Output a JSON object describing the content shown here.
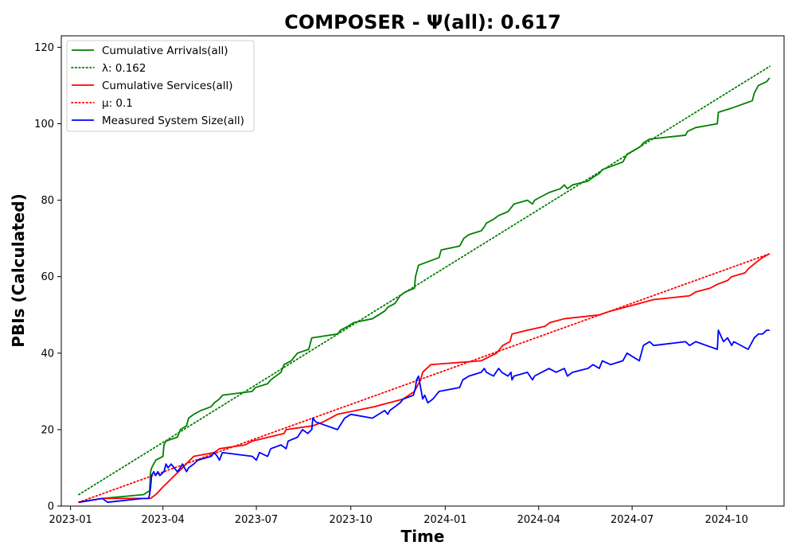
{
  "chart_data": {
    "type": "line",
    "title": "COMPOSER -  Ψ(all): 0.617",
    "xlabel": "Time",
    "ylabel": "PBIs (Calculated)",
    "xlim": [
      "2022-12-23",
      "2024-11-26"
    ],
    "ylim": [
      0,
      123
    ],
    "x_ticks": [
      "2023-01",
      "2023-04",
      "2023-07",
      "2023-10",
      "2024-01",
      "2024-04",
      "2024-07",
      "2024-10"
    ],
    "y_ticks": [
      0,
      20,
      40,
      60,
      80,
      100,
      120
    ],
    "grid": false,
    "legend_position": "top-left",
    "series": [
      {
        "name": "Cumulative Arrivals(all)",
        "style": "solid",
        "color": "#008000",
        "points": [
          [
            "2023-01-09",
            1
          ],
          [
            "2023-02-01",
            2
          ],
          [
            "2023-03-13",
            3
          ],
          [
            "2023-03-19",
            4
          ],
          [
            "2023-03-20",
            9
          ],
          [
            "2023-03-21",
            10
          ],
          [
            "2023-03-25",
            12
          ],
          [
            "2023-04-01",
            13
          ],
          [
            "2023-04-02",
            16
          ],
          [
            "2023-04-04",
            17
          ],
          [
            "2023-04-15",
            18
          ],
          [
            "2023-04-18",
            20
          ],
          [
            "2023-04-24",
            21
          ],
          [
            "2023-04-26",
            23
          ],
          [
            "2023-05-01",
            24
          ],
          [
            "2023-05-08",
            25
          ],
          [
            "2023-05-18",
            26
          ],
          [
            "2023-05-21",
            27
          ],
          [
            "2023-05-26",
            28
          ],
          [
            "2023-05-29",
            29
          ],
          [
            "2023-06-27",
            30
          ],
          [
            "2023-06-30",
            31
          ],
          [
            "2023-07-12",
            32
          ],
          [
            "2023-07-15",
            33
          ],
          [
            "2023-07-25",
            35
          ],
          [
            "2023-07-28",
            37
          ],
          [
            "2023-08-04",
            38
          ],
          [
            "2023-08-10",
            40
          ],
          [
            "2023-08-21",
            41
          ],
          [
            "2023-08-24",
            44
          ],
          [
            "2023-09-18",
            45
          ],
          [
            "2023-09-21",
            46
          ],
          [
            "2023-09-28",
            47
          ],
          [
            "2023-10-04",
            48
          ],
          [
            "2023-10-22",
            49
          ],
          [
            "2023-11-03",
            51
          ],
          [
            "2023-11-06",
            52
          ],
          [
            "2023-11-13",
            53
          ],
          [
            "2023-11-18",
            55
          ],
          [
            "2023-11-23",
            56
          ],
          [
            "2023-12-02",
            57
          ],
          [
            "2023-12-03",
            60
          ],
          [
            "2023-12-06",
            63
          ],
          [
            "2023-12-26",
            65
          ],
          [
            "2023-12-28",
            67
          ],
          [
            "2024-01-15",
            68
          ],
          [
            "2024-01-19",
            70
          ],
          [
            "2024-01-24",
            71
          ],
          [
            "2024-02-05",
            72
          ],
          [
            "2024-02-08",
            73
          ],
          [
            "2024-02-10",
            74
          ],
          [
            "2024-02-17",
            75
          ],
          [
            "2024-02-22",
            76
          ],
          [
            "2024-03-02",
            77
          ],
          [
            "2024-03-05",
            78
          ],
          [
            "2024-03-08",
            79
          ],
          [
            "2024-03-21",
            80
          ],
          [
            "2024-03-26",
            79
          ],
          [
            "2024-03-28",
            80
          ],
          [
            "2024-04-11",
            82
          ],
          [
            "2024-04-22",
            83
          ],
          [
            "2024-04-26",
            84
          ],
          [
            "2024-04-29",
            83
          ],
          [
            "2024-05-04",
            84
          ],
          [
            "2024-05-19",
            85
          ],
          [
            "2024-05-24",
            86
          ],
          [
            "2024-05-30",
            87
          ],
          [
            "2024-06-02",
            88
          ],
          [
            "2024-06-22",
            90
          ],
          [
            "2024-06-26",
            92
          ],
          [
            "2024-07-09",
            94
          ],
          [
            "2024-07-12",
            95
          ],
          [
            "2024-07-18",
            96
          ],
          [
            "2024-08-22",
            97
          ],
          [
            "2024-08-24",
            98
          ],
          [
            "2024-09-01",
            99
          ],
          [
            "2024-09-22",
            100
          ],
          [
            "2024-09-23",
            103
          ],
          [
            "2024-10-05",
            104
          ],
          [
            "2024-10-26",
            106
          ],
          [
            "2024-10-28",
            108
          ],
          [
            "2024-11-01",
            110
          ],
          [
            "2024-11-09",
            111
          ],
          [
            "2024-11-12",
            112
          ]
        ]
      },
      {
        "name": "λ: 0.162",
        "style": "dotted",
        "color": "#008000",
        "points": [
          [
            "2023-01-09",
            3
          ],
          [
            "2024-11-12",
            115
          ]
        ]
      },
      {
        "name": "Cumulative Services(all)",
        "style": "solid",
        "color": "#ff0000",
        "points": [
          [
            "2023-01-09",
            1
          ],
          [
            "2023-02-01",
            2
          ],
          [
            "2023-03-20",
            2
          ],
          [
            "2023-03-25",
            3
          ],
          [
            "2023-04-01",
            5
          ],
          [
            "2023-04-20",
            10
          ],
          [
            "2023-05-01",
            13
          ],
          [
            "2023-05-21",
            14
          ],
          [
            "2023-05-26",
            15
          ],
          [
            "2023-06-20",
            16
          ],
          [
            "2023-06-27",
            17
          ],
          [
            "2023-07-28",
            19
          ],
          [
            "2023-07-30",
            20
          ],
          [
            "2023-08-25",
            21
          ],
          [
            "2023-09-04",
            22
          ],
          [
            "2023-09-18",
            24
          ],
          [
            "2023-10-24",
            26
          ],
          [
            "2023-11-21",
            28
          ],
          [
            "2023-12-02",
            30
          ],
          [
            "2023-12-08",
            33
          ],
          [
            "2023-12-10",
            35
          ],
          [
            "2023-12-18",
            37
          ],
          [
            "2024-02-05",
            38
          ],
          [
            "2024-02-20",
            40
          ],
          [
            "2024-02-26",
            42
          ],
          [
            "2024-03-04",
            43
          ],
          [
            "2024-03-06",
            45
          ],
          [
            "2024-03-21",
            46
          ],
          [
            "2024-04-07",
            47
          ],
          [
            "2024-04-12",
            48
          ],
          [
            "2024-04-26",
            49
          ],
          [
            "2024-05-30",
            50
          ],
          [
            "2024-06-10",
            51
          ],
          [
            "2024-07-08",
            53
          ],
          [
            "2024-07-22",
            54
          ],
          [
            "2024-08-26",
            55
          ],
          [
            "2024-09-01",
            56
          ],
          [
            "2024-09-15",
            57
          ],
          [
            "2024-09-22",
            58
          ],
          [
            "2024-10-02",
            59
          ],
          [
            "2024-10-06",
            60
          ],
          [
            "2024-10-19",
            61
          ],
          [
            "2024-10-22",
            62
          ],
          [
            "2024-10-31",
            64
          ],
          [
            "2024-11-05",
            65
          ],
          [
            "2024-11-12",
            66
          ]
        ]
      },
      {
        "name": "μ: 0.1",
        "style": "dotted",
        "color": "#ff0000",
        "points": [
          [
            "2023-01-09",
            1
          ],
          [
            "2024-11-12",
            66
          ]
        ]
      },
      {
        "name": "Measured System Size(all)",
        "style": "solid",
        "color": "#0000ff",
        "points": [
          [
            "2023-01-09",
            1
          ],
          [
            "2023-02-01",
            2
          ],
          [
            "2023-02-06",
            1
          ],
          [
            "2023-03-13",
            2
          ],
          [
            "2023-03-18",
            2
          ],
          [
            "2023-03-19",
            3
          ],
          [
            "2023-03-20",
            5
          ],
          [
            "2023-03-21",
            8
          ],
          [
            "2023-03-23",
            9
          ],
          [
            "2023-03-25",
            8
          ],
          [
            "2023-03-27",
            9
          ],
          [
            "2023-03-29",
            8
          ],
          [
            "2023-04-02",
            9
          ],
          [
            "2023-04-04",
            11
          ],
          [
            "2023-04-06",
            10
          ],
          [
            "2023-04-09",
            11
          ],
          [
            "2023-04-15",
            9
          ],
          [
            "2023-04-18",
            10
          ],
          [
            "2023-04-20",
            11
          ],
          [
            "2023-04-24",
            9
          ],
          [
            "2023-04-26",
            10
          ],
          [
            "2023-05-01",
            11
          ],
          [
            "2023-05-05",
            12
          ],
          [
            "2023-05-18",
            13
          ],
          [
            "2023-05-21",
            14
          ],
          [
            "2023-05-24",
            13
          ],
          [
            "2023-05-26",
            12
          ],
          [
            "2023-05-29",
            14
          ],
          [
            "2023-06-27",
            13
          ],
          [
            "2023-07-01",
            12
          ],
          [
            "2023-07-04",
            14
          ],
          [
            "2023-07-12",
            13
          ],
          [
            "2023-07-15",
            15
          ],
          [
            "2023-07-25",
            16
          ],
          [
            "2023-07-30",
            15
          ],
          [
            "2023-08-01",
            17
          ],
          [
            "2023-08-10",
            18
          ],
          [
            "2023-08-15",
            20
          ],
          [
            "2023-08-20",
            19
          ],
          [
            "2023-08-24",
            20
          ],
          [
            "2023-08-25",
            23
          ],
          [
            "2023-08-28",
            22
          ],
          [
            "2023-09-18",
            20
          ],
          [
            "2023-09-25",
            23
          ],
          [
            "2023-10-01",
            24
          ],
          [
            "2023-10-22",
            23
          ],
          [
            "2023-11-03",
            25
          ],
          [
            "2023-11-06",
            24
          ],
          [
            "2023-11-08",
            25
          ],
          [
            "2023-11-13",
            26
          ],
          [
            "2023-11-18",
            27
          ],
          [
            "2023-11-21",
            28
          ],
          [
            "2023-12-01",
            29
          ],
          [
            "2023-12-03",
            31
          ],
          [
            "2023-12-04",
            33
          ],
          [
            "2023-12-06",
            34
          ],
          [
            "2023-12-08",
            31
          ],
          [
            "2023-12-10",
            28
          ],
          [
            "2023-12-12",
            29
          ],
          [
            "2023-12-15",
            27
          ],
          [
            "2023-12-20",
            28
          ],
          [
            "2023-12-26",
            30
          ],
          [
            "2024-01-15",
            31
          ],
          [
            "2024-01-18",
            33
          ],
          [
            "2024-01-24",
            34
          ],
          [
            "2024-02-05",
            35
          ],
          [
            "2024-02-08",
            36
          ],
          [
            "2024-02-10",
            35
          ],
          [
            "2024-02-17",
            34
          ],
          [
            "2024-02-22",
            36
          ],
          [
            "2024-02-25",
            35
          ],
          [
            "2024-03-02",
            34
          ],
          [
            "2024-03-05",
            35
          ],
          [
            "2024-03-06",
            33
          ],
          [
            "2024-03-08",
            34
          ],
          [
            "2024-03-21",
            35
          ],
          [
            "2024-03-26",
            33
          ],
          [
            "2024-03-28",
            34
          ],
          [
            "2024-04-11",
            36
          ],
          [
            "2024-04-18",
            35
          ],
          [
            "2024-04-26",
            36
          ],
          [
            "2024-04-29",
            34
          ],
          [
            "2024-05-04",
            35
          ],
          [
            "2024-05-19",
            36
          ],
          [
            "2024-05-24",
            37
          ],
          [
            "2024-05-30",
            36
          ],
          [
            "2024-06-02",
            38
          ],
          [
            "2024-06-10",
            37
          ],
          [
            "2024-06-22",
            38
          ],
          [
            "2024-06-26",
            40
          ],
          [
            "2024-07-08",
            38
          ],
          [
            "2024-07-12",
            42
          ],
          [
            "2024-07-18",
            43
          ],
          [
            "2024-07-22",
            42
          ],
          [
            "2024-08-22",
            43
          ],
          [
            "2024-08-26",
            42
          ],
          [
            "2024-09-01",
            43
          ],
          [
            "2024-09-22",
            41
          ],
          [
            "2024-09-23",
            46
          ],
          [
            "2024-09-28",
            43
          ],
          [
            "2024-10-02",
            44
          ],
          [
            "2024-10-06",
            42
          ],
          [
            "2024-10-08",
            43
          ],
          [
            "2024-10-22",
            41
          ],
          [
            "2024-10-28",
            44
          ],
          [
            "2024-11-01",
            45
          ],
          [
            "2024-11-05",
            45
          ],
          [
            "2024-11-09",
            46
          ],
          [
            "2024-11-12",
            46
          ]
        ]
      }
    ]
  }
}
